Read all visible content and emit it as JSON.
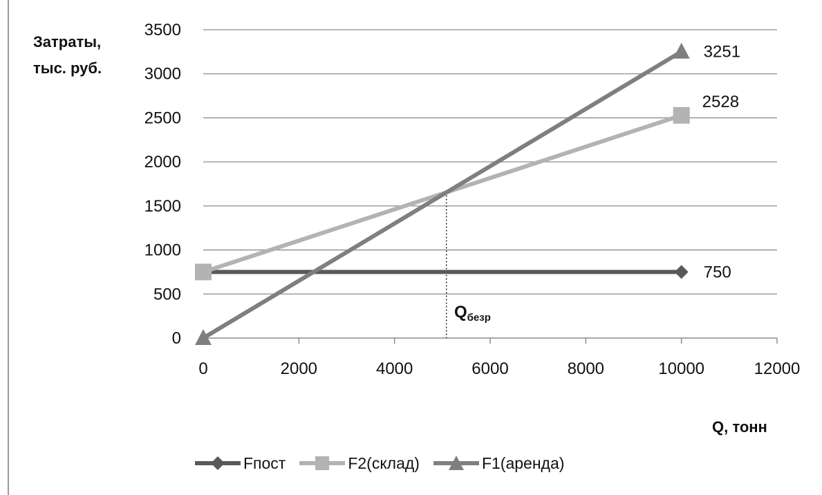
{
  "chart_data": {
    "type": "line",
    "ylabel_lines": [
      "Затраты,",
      "тыс. руб."
    ],
    "xlabel": "Q, тонн",
    "xlim": [
      0,
      12000
    ],
    "ylim": [
      0,
      3500
    ],
    "x_ticks": [
      0,
      2000,
      4000,
      6000,
      8000,
      10000,
      12000
    ],
    "y_ticks": [
      0,
      500,
      1000,
      1500,
      2000,
      2500,
      3000,
      3500
    ],
    "grid": "horizontal",
    "legend_position": "bottom",
    "series": [
      {
        "name": "Fпост",
        "x": [
          0,
          10000
        ],
        "y": [
          750,
          750
        ],
        "marker": "diamond",
        "color": "#595959",
        "end_label": "750"
      },
      {
        "name": "F2(склад)",
        "x": [
          0,
          10000
        ],
        "y": [
          750,
          2528
        ],
        "marker": "square",
        "color": "#b3b3b3",
        "end_label": "2528"
      },
      {
        "name": "F1(аренда)",
        "x": [
          0,
          10000
        ],
        "y": [
          0,
          3251
        ],
        "marker": "triangle",
        "color": "#7f7f7f",
        "end_label": "3251"
      }
    ],
    "annotation": {
      "text_main": "Q",
      "text_sub": "безр",
      "x": 5085,
      "y_top": 1660
    }
  }
}
